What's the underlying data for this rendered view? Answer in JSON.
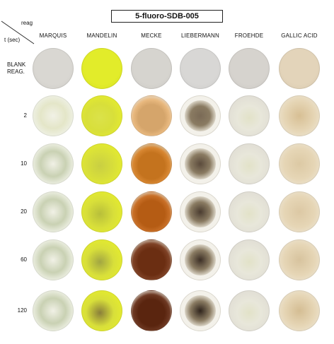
{
  "title": "5-fluoro-SDB-005",
  "corner": {
    "reagent_label": "reag",
    "time_label": "t (sec)"
  },
  "columns": [
    "MARQUIS",
    "MANDELIN",
    "MECKE",
    "LIEBERMANN",
    "FROEHDE",
    "GALLIC ACID"
  ],
  "rows": [
    "BLANK\nREAG.",
    "2",
    "10",
    "20",
    "60",
    "120"
  ],
  "colors": {
    "blank": [
      "#d9d7d2",
      "#e2ec2a",
      "#d6d4cf",
      "#d8d7d5",
      "#d6d3ce",
      "#e3d4ba"
    ],
    "marquis": "#e9ebd6",
    "mandelin": "#dde54a",
    "mecke": "#c87a2c",
    "liebermann": "#5a4a3c",
    "froehde": "#e6e6da",
    "gallic": "#e2cfa6"
  }
}
